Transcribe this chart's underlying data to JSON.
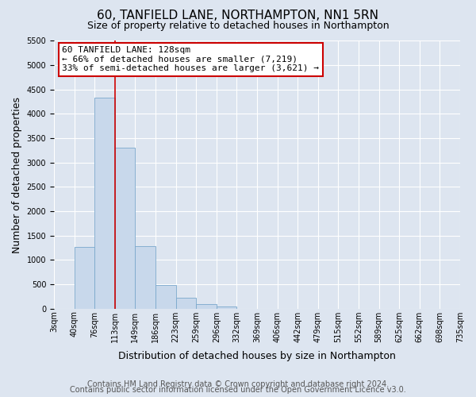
{
  "title": "60, TANFIELD LANE, NORTHAMPTON, NN1 5RN",
  "subtitle": "Size of property relative to detached houses in Northampton",
  "xlabel": "Distribution of detached houses by size in Northampton",
  "ylabel": "Number of detached properties",
  "bin_labels": [
    "3sqm",
    "40sqm",
    "76sqm",
    "113sqm",
    "149sqm",
    "186sqm",
    "223sqm",
    "259sqm",
    "296sqm",
    "332sqm",
    "369sqm",
    "406sqm",
    "442sqm",
    "479sqm",
    "515sqm",
    "552sqm",
    "589sqm",
    "625sqm",
    "662sqm",
    "698sqm",
    "735sqm"
  ],
  "bar_values": [
    0,
    1270,
    4330,
    3300,
    1290,
    480,
    230,
    90,
    50,
    0,
    0,
    0,
    0,
    0,
    0,
    0,
    0,
    0,
    0,
    0
  ],
  "bar_color": "#c8d8eb",
  "bar_edgecolor": "#7aa8cc",
  "vline_x": 3,
  "vline_color": "#cc0000",
  "ylim": [
    0,
    5500
  ],
  "yticks": [
    0,
    500,
    1000,
    1500,
    2000,
    2500,
    3000,
    3500,
    4000,
    4500,
    5000,
    5500
  ],
  "annotation_title": "60 TANFIELD LANE: 128sqm",
  "annotation_line1": "← 66% of detached houses are smaller (7,219)",
  "annotation_line2": "33% of semi-detached houses are larger (3,621) →",
  "annotation_box_facecolor": "#ffffff",
  "annotation_box_edgecolor": "#cc0000",
  "footer_line1": "Contains HM Land Registry data © Crown copyright and database right 2024.",
  "footer_line2": "Contains public sector information licensed under the Open Government Licence v3.0.",
  "bg_color": "#dde5f0",
  "plot_bg_color": "#dde5f0",
  "grid_color": "#ffffff",
  "title_fontsize": 11,
  "subtitle_fontsize": 9,
  "axis_label_fontsize": 9,
  "tick_fontsize": 7,
  "annotation_fontsize": 8,
  "footer_fontsize": 7
}
